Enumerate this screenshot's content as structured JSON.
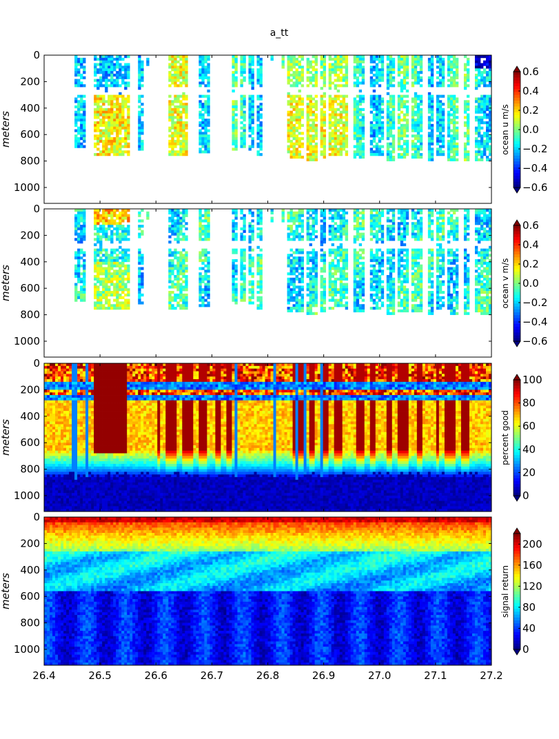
{
  "chart_data": [
    {
      "type": "heatmap",
      "title": "a_tt",
      "ylabel": "meters",
      "colorbar_label": "ocean u m/s",
      "colormap": "jet",
      "y_inverted": true,
      "xlim": [
        26.4,
        27.2
      ],
      "ylim": [
        0,
        1120
      ],
      "x_ticks": [
        "26.4",
        "26.5",
        "26.6",
        "26.7",
        "26.8",
        "26.9",
        "27.0",
        "27.1",
        "27.2"
      ],
      "y_ticks": [
        "0",
        "200",
        "400",
        "600",
        "800",
        "1000"
      ],
      "clim": [
        -0.6,
        0.6
      ],
      "colorbar_ticks": [
        "0.6",
        "0.4",
        "0.2",
        "0.0",
        "−0.2",
        "−0.4",
        "−0.6"
      ],
      "pattern": {
        "field": "u",
        "data_bands": [
          {
            "x": [
              26.455,
              26.475
            ],
            "depth_max": 700
          },
          {
            "x": [
              26.49,
              26.555
            ],
            "depth_max": 750
          },
          {
            "x": [
              26.568,
              26.577
            ],
            "depth_max": 720
          },
          {
            "x": [
              26.585,
              26.588
            ],
            "depth_max": 80
          },
          {
            "x": [
              26.62,
              26.655
            ],
            "depth_max": 760
          },
          {
            "x": [
              26.675,
              26.695
            ],
            "depth_max": 740
          },
          {
            "x": [
              26.735,
              26.745
            ],
            "depth_max": 720
          },
          {
            "x": [
              26.75,
              26.76
            ],
            "depth_max": 700
          },
          {
            "x": [
              26.765,
              26.775
            ],
            "depth_max": 720
          },
          {
            "x": [
              26.78,
              26.79
            ],
            "depth_max": 750
          },
          {
            "x": [
              26.805,
              26.81
            ],
            "depth_max": 100
          },
          {
            "x": [
              26.825,
              26.83
            ],
            "depth_max": 100
          },
          {
            "x": [
              26.835,
              26.865
            ],
            "depth_max": 780
          },
          {
            "x": [
              26.87,
              26.89
            ],
            "depth_max": 790
          },
          {
            "x": [
              26.895,
              26.905
            ],
            "depth_max": 780
          },
          {
            "x": [
              26.91,
              26.945
            ],
            "depth_max": 760
          },
          {
            "x": [
              26.955,
              26.975
            ],
            "depth_max": 770
          },
          {
            "x": [
              26.985,
              27.005
            ],
            "depth_max": 760
          },
          {
            "x": [
              27.01,
              27.025
            ],
            "depth_max": 790
          },
          {
            "x": [
              27.03,
              27.05
            ],
            "depth_max": 780
          },
          {
            "x": [
              27.055,
              27.075
            ],
            "depth_max": 780
          },
          {
            "x": [
              27.085,
              27.095
            ],
            "depth_max": 800
          },
          {
            "x": [
              27.1,
              27.115
            ],
            "depth_max": 760
          },
          {
            "x": [
              27.12,
              27.14
            ],
            "depth_max": 790
          },
          {
            "x": [
              27.15,
              27.16
            ],
            "depth_max": 790
          },
          {
            "x": [
              27.17,
              27.2
            ],
            "depth_max": 790
          }
        ],
        "deep_gap": [
          240,
          300
        ]
      }
    },
    {
      "type": "heatmap",
      "ylabel": "meters",
      "colorbar_label": "ocean v m/s",
      "colormap": "jet",
      "y_inverted": true,
      "xlim": [
        26.4,
        27.2
      ],
      "ylim": [
        0,
        1120
      ],
      "y_ticks": [
        "0",
        "200",
        "400",
        "600",
        "800",
        "1000"
      ],
      "clim": [
        -0.6,
        0.6
      ],
      "colorbar_ticks": [
        "0.6",
        "0.4",
        "0.2",
        "0.0",
        "−0.2",
        "−0.4",
        "−0.6"
      ],
      "pattern": {
        "field": "v"
      }
    },
    {
      "type": "heatmap",
      "ylabel": "meters",
      "colorbar_label": "percent good",
      "colormap": "jet",
      "y_inverted": true,
      "xlim": [
        26.4,
        27.2
      ],
      "ylim": [
        0,
        1120
      ],
      "y_ticks": [
        "0",
        "200",
        "400",
        "600",
        "800",
        "1000"
      ],
      "clim": [
        0,
        100
      ],
      "colorbar_ticks": [
        "100",
        "80",
        "60",
        "40",
        "20",
        "0"
      ],
      "pattern": {
        "field": "percent_good",
        "high_block": {
          "x": [
            26.49,
            26.55
          ],
          "depth": [
            0,
            680
          ],
          "value": 100
        },
        "bad_bands_depth": [
          [
            150,
            200
          ],
          [
            240,
            280
          ]
        ],
        "falloff_depth": [
          650,
          850
        ],
        "high_columns": [
          [
            26.6,
            26.605
          ],
          [
            26.615,
            26.635
          ],
          [
            26.645,
            26.665
          ],
          [
            26.675,
            26.69
          ],
          [
            26.705,
            26.715
          ],
          [
            26.725,
            26.735
          ],
          [
            26.845,
            26.865
          ],
          [
            26.875,
            26.885
          ],
          [
            26.895,
            26.91
          ],
          [
            26.92,
            26.935
          ],
          [
            26.96,
            26.975
          ],
          [
            26.985,
            26.995
          ],
          [
            27.01,
            27.02
          ],
          [
            27.03,
            27.05
          ],
          [
            27.065,
            27.075
          ],
          [
            27.1,
            27.105
          ],
          [
            27.115,
            27.135
          ],
          [
            27.145,
            27.16
          ]
        ]
      }
    },
    {
      "type": "heatmap",
      "ylabel": "meters",
      "colorbar_label": "signal return",
      "colormap": "jet",
      "y_inverted": true,
      "xlim": [
        26.4,
        27.2
      ],
      "ylim": [
        0,
        1120
      ],
      "x_ticks": [
        "26.4",
        "26.5",
        "26.6",
        "26.7",
        "26.8",
        "26.9",
        "27.0",
        "27.1",
        "27.2"
      ],
      "y_ticks": [
        "0",
        "200",
        "400",
        "600",
        "800",
        "1000"
      ],
      "clim": [
        0,
        220
      ],
      "colorbar_ticks": [
        "200",
        "160",
        "120",
        "80",
        "40",
        "0"
      ],
      "colorbar_tick_values": [
        200,
        160,
        120,
        80,
        40,
        0
      ],
      "pattern": {
        "field": "signal_return",
        "surface_value": 190,
        "transition_depth": 270,
        "mid_value": 80,
        "deep_value": 30
      }
    }
  ]
}
